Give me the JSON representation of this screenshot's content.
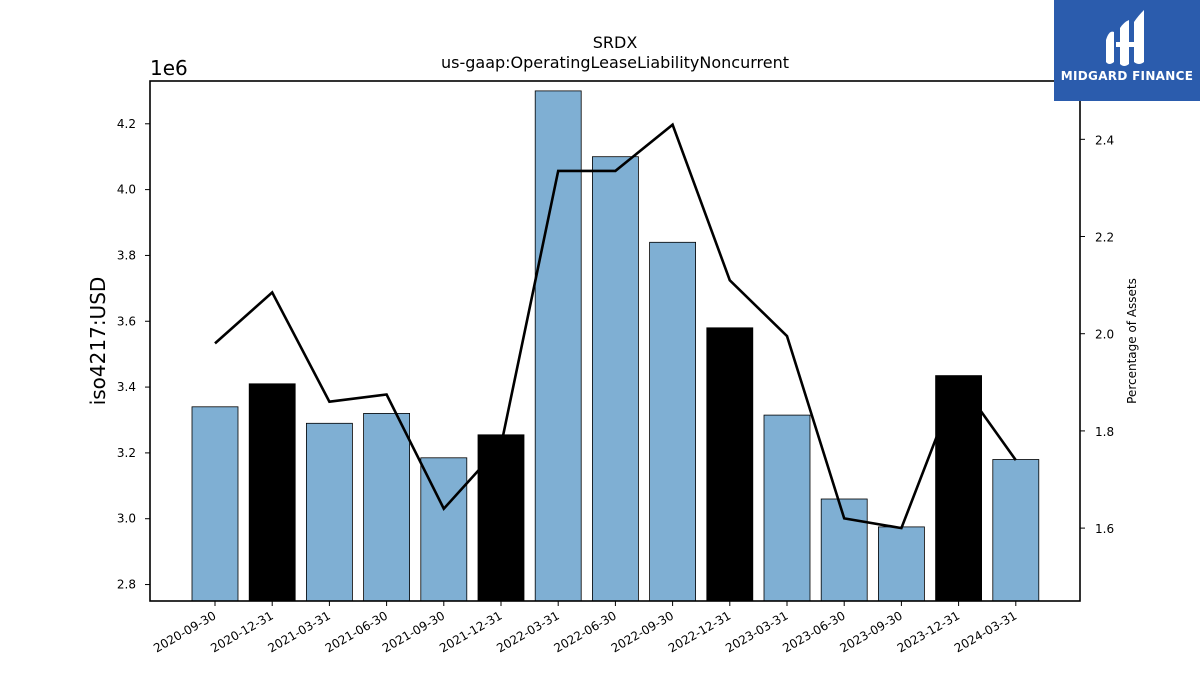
{
  "chart_data": {
    "type": "bar",
    "title": "SRDX",
    "subtitle": "us-gaap:OperatingLeaseLiabilityNoncurrent",
    "ylabel": "iso4217:USD",
    "y_multiplier": "1e6",
    "y2label": "Percentage of Assets",
    "categories": [
      "2020-09-30",
      "2020-12-31",
      "2021-03-31",
      "2021-06-30",
      "2021-09-30",
      "2021-12-31",
      "2022-03-31",
      "2022-06-30",
      "2022-09-30",
      "2022-12-31",
      "2023-03-31",
      "2023-06-30",
      "2023-09-30",
      "2023-12-31",
      "2024-03-31"
    ],
    "series": [
      {
        "type": "bar",
        "values": [
          3.34,
          3.41,
          3.29,
          3.32,
          3.185,
          3.255,
          4.3,
          4.1,
          3.84,
          3.58,
          3.315,
          3.06,
          2.975,
          3.435,
          3.18
        ],
        "highlight": [
          false,
          true,
          false,
          false,
          false,
          true,
          false,
          false,
          false,
          true,
          false,
          false,
          false,
          true,
          false
        ]
      },
      {
        "type": "line",
        "axis": "right",
        "values": [
          1.98,
          2.085,
          1.86,
          1.875,
          1.64,
          1.77,
          2.335,
          2.335,
          2.43,
          2.11,
          1.995,
          1.62,
          1.6,
          1.905,
          1.74
        ]
      }
    ],
    "ylim": [
      2.75,
      4.33
    ],
    "y2lim": [
      1.45,
      2.52
    ],
    "yticks": [
      "2.8",
      "3.0",
      "3.2",
      "3.4",
      "3.6",
      "3.8",
      "4.0",
      "4.2"
    ],
    "y2ticks": [
      "1.6",
      "1.8",
      "2.0",
      "2.2",
      "2.4"
    ],
    "colors": {
      "bar": "#7fafd3",
      "highlight_bar": "#000000",
      "line": "#000000"
    },
    "grid": false
  },
  "logo": {
    "text": "MIDGARD FINANCE",
    "background": "#2b5cad"
  }
}
